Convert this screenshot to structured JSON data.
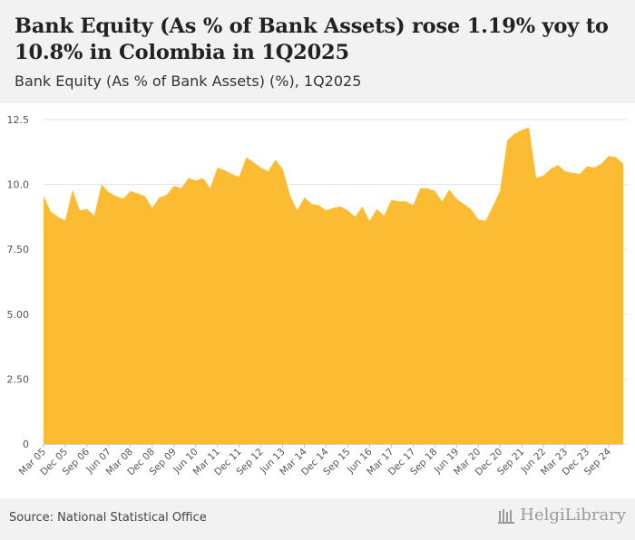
{
  "header": {
    "title": "Bank Equity (As % of Bank Assets) rose 1.19% yoy to 10.8% in Colombia in 1Q2025",
    "subtitle": "Bank Equity (As % of Bank Assets) (%), 1Q2025"
  },
  "footer": {
    "source": "Source: National Statistical Office",
    "logo_text": "HelgiLibrary"
  },
  "chart_data": {
    "type": "area",
    "title": "Bank Equity (As % of Bank Assets) rose 1.19% yoy to 10.8% in Colombia in 1Q2025",
    "subtitle": "Bank Equity (As % of Bank Assets) (%), 1Q2025",
    "ylim": [
      0,
      12.5
    ],
    "y_ticks": [
      "0",
      "2.50",
      "5.00",
      "7.50",
      "10.0",
      "12.5"
    ],
    "x_tick_labels": [
      "Mar 05",
      "Dec 05",
      "Sep 06",
      "Jun 07",
      "Mar 08",
      "Dec 08",
      "Sep 09",
      "Jun 10",
      "Mar 11",
      "Dec 11",
      "Sep 12",
      "Jun 13",
      "Mar 14",
      "Dec 14",
      "Sep 15",
      "Jun 16",
      "Mar 17",
      "Dec 17",
      "Sep 18",
      "Jun 19",
      "Mar 20",
      "Dec 20",
      "Sep 21",
      "Jun 22",
      "Mar 23",
      "Dec 23",
      "Sep 24"
    ],
    "grid": true,
    "color": "#FBBB33",
    "series": [
      {
        "values": [
          9.55,
          8.95,
          8.75,
          8.62,
          9.8,
          9.0,
          9.05,
          8.8,
          10.0,
          9.7,
          9.55,
          9.45,
          9.75,
          9.65,
          9.55,
          9.1,
          9.5,
          9.6,
          9.95,
          9.85,
          10.25,
          10.15,
          10.25,
          9.85,
          10.65,
          10.55,
          10.4,
          10.3,
          11.05,
          10.85,
          10.65,
          10.5,
          10.95,
          10.6,
          9.6,
          9.0,
          9.5,
          9.25,
          9.2,
          9.0,
          9.1,
          9.15,
          9.0,
          8.75,
          9.15,
          8.6,
          9.05,
          8.8,
          9.4,
          9.35,
          9.35,
          9.2,
          9.85,
          9.85,
          9.75,
          9.35,
          9.8,
          9.45,
          9.25,
          9.05,
          8.65,
          8.6,
          9.15,
          9.75,
          11.7,
          11.95,
          12.1,
          12.2,
          10.25,
          10.35,
          10.6,
          10.75,
          10.5,
          10.45,
          10.4,
          10.7,
          10.65,
          10.8,
          11.1,
          11.05,
          10.8
        ]
      }
    ]
  }
}
